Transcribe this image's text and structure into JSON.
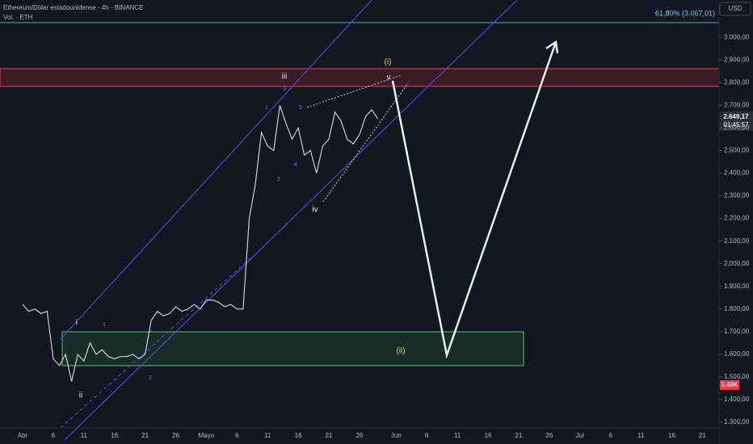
{
  "chart_data": {
    "type": "line",
    "header": "Ethereum/Dólar estadounidense · 4h · BINANCE",
    "subheader": "Vol. · ETH",
    "currency": "USD",
    "fib_label": "61,80% (3.067,01)",
    "price_tag": "2.649,17",
    "countdown": "01:45:57",
    "volume_tag": "5,48K",
    "wave_labels": [
      "i",
      "ii",
      "iii",
      "iv",
      "v",
      "(i)",
      "(ii)"
    ],
    "sub_wave_labels": [
      "1",
      "2",
      "3",
      "4",
      "5"
    ],
    "categories": [
      "Abr",
      null,
      null,
      null,
      null,
      "6",
      null,
      null,
      null,
      null,
      "11",
      null,
      null,
      null,
      null,
      "16",
      null,
      null,
      null,
      null,
      "21",
      null,
      null,
      null,
      null,
      "26",
      null,
      null,
      null,
      null,
      "Mayo",
      null,
      null,
      null,
      null,
      "6",
      null,
      null,
      null,
      null,
      "11",
      null,
      null,
      null,
      null,
      "16",
      null,
      null,
      null,
      null,
      "21",
      null,
      null,
      null,
      null,
      "26",
      null,
      null,
      null,
      null,
      null,
      "Jun",
      null,
      null,
      null,
      null,
      "6",
      null,
      null,
      null,
      null,
      "11",
      null,
      null,
      null,
      null,
      "16",
      null,
      null,
      null,
      null,
      "21",
      null,
      null,
      null,
      null,
      "26",
      null,
      null,
      null,
      null,
      "Jul",
      null,
      null,
      null,
      null,
      "6",
      null,
      null,
      null,
      null,
      "11",
      null,
      null,
      null,
      null,
      "16",
      null,
      null,
      null,
      null,
      "21",
      null,
      null,
      null
    ],
    "series": [
      {
        "name": "ETHUSD",
        "color": "#c9ccd4",
        "values": [
          1820,
          1790,
          1800,
          1780,
          1790,
          1580,
          1550,
          1600,
          1480,
          1600,
          1570,
          1650,
          1600,
          1620,
          1590,
          1580,
          1590,
          1590,
          1600,
          1580,
          1600,
          1750,
          1790,
          1770,
          1780,
          1810,
          1790,
          1800,
          1820,
          1800,
          1840,
          1840,
          1830,
          1810,
          1820,
          1800,
          1800,
          2200,
          2350,
          2580,
          2520,
          2500,
          2700,
          2620,
          2550,
          2600,
          2480,
          2500,
          2400,
          2520,
          2550,
          2670,
          2630,
          2550,
          2530,
          2570,
          2650,
          2680,
          2640,
          null,
          null,
          null,
          null,
          null,
          null,
          null,
          null,
          null,
          null,
          null,
          null,
          null,
          null,
          null,
          null,
          null,
          null,
          null,
          null,
          null,
          null,
          null,
          null,
          null,
          null,
          null,
          null,
          null,
          null,
          null,
          null,
          null,
          null,
          null,
          null,
          null,
          null,
          null,
          null,
          null,
          null,
          null,
          null,
          null,
          null,
          null,
          null,
          null,
          null,
          null,
          null,
          null,
          null,
          null,
          null
        ]
      }
    ],
    "ylim": [
      1275,
      3165
    ],
    "yticks": [
      {
        "value": 1300,
        "label": "1.300,00"
      },
      {
        "value": 1400,
        "label": "1.400,00"
      },
      {
        "value": 1500,
        "label": "1.500,00"
      },
      {
        "value": 1600,
        "label": "1.600,00"
      },
      {
        "value": 1700,
        "label": "1.700,00"
      },
      {
        "value": 1800,
        "label": "1.800,00"
      },
      {
        "value": 1900,
        "label": "1.900,00"
      },
      {
        "value": 2000,
        "label": "2.000,00"
      },
      {
        "value": 2100,
        "label": "2.100,00"
      },
      {
        "value": 2200,
        "label": "2.200,00"
      },
      {
        "value": 2300,
        "label": "2.300,00"
      },
      {
        "value": 2400,
        "label": "2.400,00"
      },
      {
        "value": 2500,
        "label": "2.500,00"
      },
      {
        "value": 2600,
        "label": "2.600,00"
      },
      {
        "value": 2700,
        "label": "2.700,00"
      },
      {
        "value": 2800,
        "label": "2.800,00"
      },
      {
        "value": 2900,
        "label": "2.900,00"
      },
      {
        "value": 3000,
        "label": "3.000,00"
      }
    ]
  }
}
